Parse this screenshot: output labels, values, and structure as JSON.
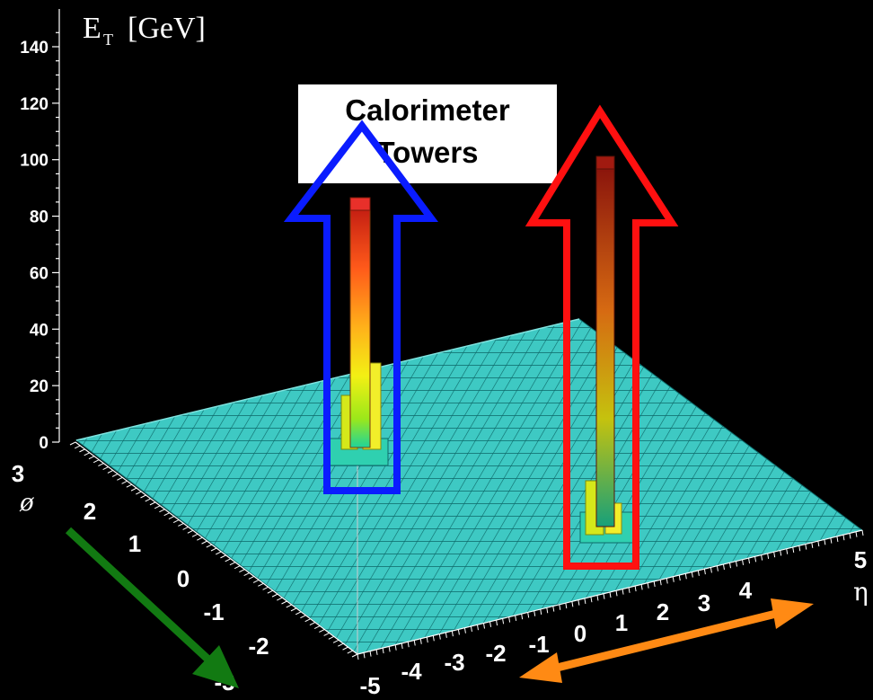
{
  "chart_data": {
    "type": "lego-3d-histogram",
    "ylabel": "E",
    "ylabel_sub": "T",
    "ylabel_unit": "[GeV]",
    "yticks": [
      "0",
      "20",
      "40",
      "60",
      "80",
      "100",
      "120",
      "140"
    ],
    "ylim": [
      0,
      145
    ],
    "phi_label": "ø",
    "phi_ticks": [
      "3",
      "2",
      "1",
      "0",
      "-1",
      "-2",
      "-3"
    ],
    "eta_label": "η",
    "eta_ticks": [
      "-5",
      "-4",
      "-3",
      "-2",
      "-1",
      "0",
      "1",
      "2",
      "3",
      "4",
      "5"
    ],
    "floor_color": "#3ec9c3",
    "towers": [
      {
        "name": "blue tower",
        "peak": 86,
        "arrow_color": "#0a1cff"
      },
      {
        "name": "red tower",
        "peak": 99,
        "arrow_color": "#ff1010"
      }
    ]
  },
  "callout": {
    "line1": "Calorimeter",
    "line2": "Towers"
  },
  "colors": {
    "green_arrow": "#127a12",
    "orange_arrow": "#ff8a14",
    "background": "#000000"
  }
}
